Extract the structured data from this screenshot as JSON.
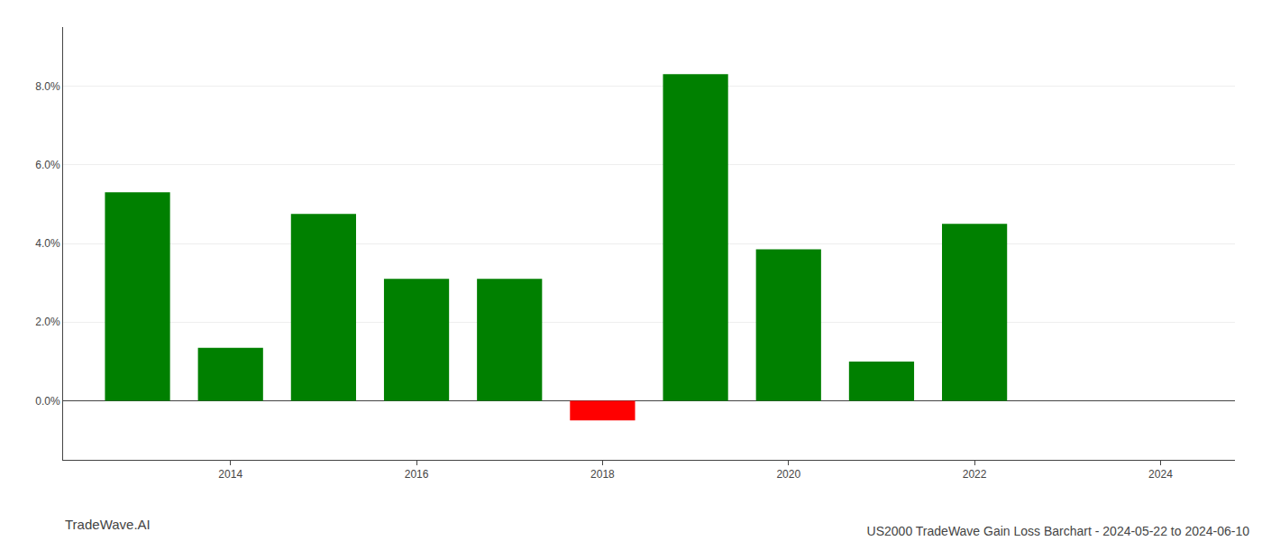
{
  "chart_data": {
    "type": "bar",
    "title": "US2000 TradeWave Gain Loss Barchart - 2024-05-22 to 2024-06-10",
    "annotations": [
      "TradeWave.AI"
    ],
    "x": [
      2013,
      2014,
      2015,
      2016,
      2017,
      2019,
      2020,
      2021,
      2022,
      2023,
      2018
    ],
    "values": [
      0.053,
      0.0135,
      0.0475,
      0.031,
      0.031,
      0.083,
      0.0385,
      0.01,
      0.045,
      0.0,
      -0.005
    ],
    "colors": [
      "#008000",
      "#008000",
      "#008000",
      "#008000",
      "#008000",
      "#008000",
      "#008000",
      "#008000",
      "#008000",
      "#008000",
      "#ff0000"
    ],
    "xlim": [
      2012.2,
      2024.8
    ],
    "xticks": [
      2014,
      2016,
      2018,
      2020,
      2022,
      2024
    ],
    "ylim": [
      -0.015,
      0.095
    ],
    "yticks": [
      {
        "value": 0.0,
        "label": "0.0%"
      },
      {
        "value": 0.02,
        "label": "2.0%"
      },
      {
        "value": 0.04,
        "label": "4.0%"
      },
      {
        "value": 0.06,
        "label": "6.0%"
      },
      {
        "value": 0.08,
        "label": "8.0%"
      }
    ],
    "grid": true
  }
}
